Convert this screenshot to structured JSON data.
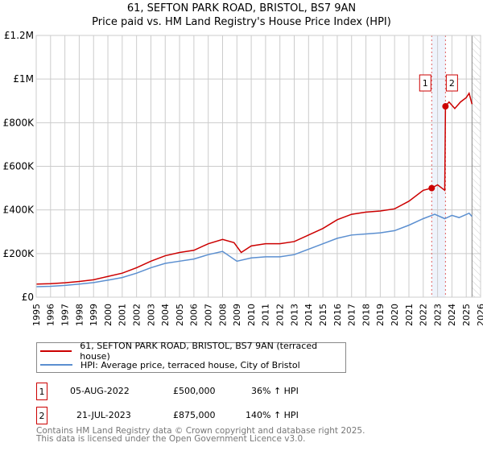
{
  "header": {
    "title": "61, SEFTON PARK ROAD, BRISTOL, BS7 9AN",
    "subtitle": "Price paid vs. HM Land Registry's House Price Index (HPI)"
  },
  "chart_data": {
    "type": "line",
    "title": "61, SEFTON PARK ROAD, BRISTOL, BS7 9AN",
    "subtitle": "Price paid vs. HM Land Registry's House Price Index (HPI)",
    "xlim": [
      1995,
      2026
    ],
    "ylim": [
      0,
      1200000
    ],
    "x_ticks": [
      "1995",
      "1996",
      "1997",
      "1998",
      "1999",
      "2000",
      "2001",
      "2002",
      "2003",
      "2004",
      "2005",
      "2006",
      "2007",
      "2008",
      "2009",
      "2010",
      "2011",
      "2012",
      "2013",
      "2014",
      "2015",
      "2016",
      "2017",
      "2018",
      "2019",
      "2020",
      "2021",
      "2022",
      "2023",
      "2024",
      "2025",
      "2026"
    ],
    "y_ticks": [
      {
        "v": 0,
        "label": "£0"
      },
      {
        "v": 200000,
        "label": "£200K"
      },
      {
        "v": 400000,
        "label": "£400K"
      },
      {
        "v": 600000,
        "label": "£600K"
      },
      {
        "v": 800000,
        "label": "£800K"
      },
      {
        "v": 1000000,
        "label": "£1M"
      },
      {
        "v": 1200000,
        "label": "£1.2M"
      }
    ],
    "grid": true,
    "shaded_span": [
      2022.59,
      2023.55
    ],
    "hatched_after": 2025.4,
    "colors": {
      "property": "#cc0000",
      "hpi": "#5b8fd0",
      "shade": "#eef3fb",
      "marker_line": "#e06060"
    },
    "series": [
      {
        "name": "61, SEFTON PARK ROAD, BRISTOL, BS7 9AN (terraced house)",
        "x": [
          1995,
          1996,
          1997,
          1998,
          1999,
          2000,
          2001,
          2002,
          2003,
          2004,
          2005,
          2006,
          2007,
          2008,
          2008.8,
          2009.3,
          2010,
          2011,
          2012,
          2013,
          2014,
          2015,
          2016,
          2017,
          2018,
          2019,
          2020,
          2021,
          2022,
          2022.59,
          2023.0,
          2023.5,
          2023.55,
          2023.8,
          2024.2,
          2024.6,
          2025.0,
          2025.2,
          2025.4
        ],
        "values": [
          60000,
          62000,
          66000,
          72000,
          80000,
          95000,
          110000,
          135000,
          165000,
          190000,
          205000,
          215000,
          245000,
          265000,
          250000,
          205000,
          235000,
          245000,
          245000,
          255000,
          285000,
          315000,
          355000,
          380000,
          390000,
          395000,
          405000,
          440000,
          490000,
          500000,
          515000,
          490000,
          875000,
          895000,
          865000,
          895000,
          915000,
          935000,
          885000
        ]
      },
      {
        "name": "HPI: Average price, terraced house, City of Bristol",
        "x": [
          1995,
          1996,
          1997,
          1998,
          1999,
          2000,
          2001,
          2002,
          2003,
          2004,
          2005,
          2006,
          2007,
          2008,
          2009,
          2010,
          2011,
          2012,
          2013,
          2014,
          2015,
          2016,
          2017,
          2018,
          2019,
          2020,
          2021,
          2022,
          2022.8,
          2023.5,
          2024,
          2024.5,
          2025.2,
          2025.4
        ],
        "values": [
          48000,
          50000,
          54000,
          60000,
          67000,
          78000,
          90000,
          110000,
          135000,
          155000,
          165000,
          175000,
          195000,
          210000,
          165000,
          180000,
          185000,
          185000,
          195000,
          220000,
          245000,
          270000,
          285000,
          290000,
          295000,
          305000,
          330000,
          360000,
          380000,
          360000,
          375000,
          365000,
          385000,
          370000
        ]
      }
    ],
    "sales": [
      {
        "id": "1",
        "x": 2022.59,
        "value": 500000
      },
      {
        "id": "2",
        "x": 2023.55,
        "value": 875000
      }
    ]
  },
  "legend": [
    {
      "label": "61, SEFTON PARK ROAD, BRISTOL, BS7 9AN (terraced house)"
    },
    {
      "label": "HPI: Average price, terraced house, City of Bristol"
    }
  ],
  "transactions": [
    {
      "id": "1",
      "date": "05-AUG-2022",
      "price": "£500,000",
      "hpi": "36% ↑ HPI"
    },
    {
      "id": "2",
      "date": "21-JUL-2023",
      "price": "£875,000",
      "hpi": "140% ↑ HPI"
    }
  ],
  "footer": {
    "line1": "Contains HM Land Registry data © Crown copyright and database right 2025.",
    "line2": "This data is licensed under the Open Government Licence v3.0."
  }
}
